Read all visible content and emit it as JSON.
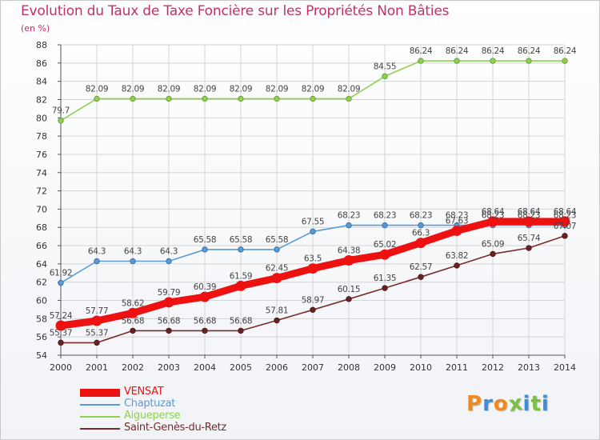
{
  "title": "Evolution du Taux de Taxe Foncière sur les Propriétés Non Bâties",
  "unit_label": "(en %)",
  "logo_text": "Proxiti",
  "colors": {
    "title": "#c0306a",
    "grid": "#d4d4d4",
    "axis": "#555555",
    "logo_letters": [
      "#f08a1c",
      "#3a8fd6",
      "#f08a1c",
      "#7ac043",
      "#3a8fd6",
      "#7ac043",
      "#3a8fd6"
    ]
  },
  "chart_data": {
    "type": "line",
    "title": "Evolution du Taux de Taxe Foncière sur les Propriétés Non Bâties",
    "ylabel": "(en %)",
    "x": [
      "2000",
      "2001",
      "2002",
      "2003",
      "2004",
      "2005",
      "2006",
      "2007",
      "2008",
      "2009",
      "2010",
      "2011",
      "2012",
      "2013",
      "2014"
    ],
    "ylim": [
      54,
      88
    ],
    "yticks": [
      54,
      56,
      58,
      60,
      62,
      64,
      66,
      68,
      70,
      72,
      74,
      76,
      78,
      80,
      82,
      84,
      86,
      88
    ],
    "grid": true,
    "legend_position": "bottom-left",
    "series": [
      {
        "name": "VENSAT",
        "color": "#ee1111",
        "values": [
          57.24,
          57.77,
          58.62,
          59.79,
          60.39,
          61.59,
          62.45,
          63.5,
          64.38,
          65.02,
          66.3,
          67.63,
          68.64,
          68.64,
          68.64
        ],
        "labels": [
          "57.24",
          "57.77",
          "58.62",
          "59.79",
          "60.39",
          "61.59",
          "62.45",
          "63.5",
          "64.38",
          "65.02",
          "66.3",
          "67.63",
          "68.64",
          "68.64",
          "68.64"
        ]
      },
      {
        "name": "Chaptuzat",
        "color": "#5b9bd5",
        "values": [
          61.92,
          64.3,
          64.3,
          64.3,
          65.58,
          65.58,
          65.58,
          67.55,
          68.23,
          68.23,
          68.23,
          68.23,
          68.23,
          68.23,
          68.23
        ],
        "labels": [
          "61.92",
          "64.3",
          "64.3",
          "64.3",
          "65.58",
          "65.58",
          "65.58",
          "67.55",
          "68.23",
          "68.23",
          "68.23",
          "68.23",
          "68.23",
          "68.23",
          "68.23"
        ]
      },
      {
        "name": "Aigueperse",
        "color": "#8fd14f",
        "values": [
          79.7,
          82.09,
          82.09,
          82.09,
          82.09,
          82.09,
          82.09,
          82.09,
          82.09,
          84.55,
          86.24,
          86.24,
          86.24,
          86.24,
          86.24
        ],
        "labels": [
          "79.7",
          "82.09",
          "82.09",
          "82.09",
          "82.09",
          "82.09",
          "82.09",
          "82.09",
          "82.09",
          "84.55",
          "86.24",
          "86.24",
          "86.24",
          "86.24",
          "86.24"
        ]
      },
      {
        "name": "Saint-Genès-du-Retz",
        "color": "#7a2a2a",
        "values": [
          55.37,
          55.37,
          56.68,
          56.68,
          56.68,
          56.68,
          57.81,
          58.97,
          60.15,
          61.35,
          62.57,
          63.82,
          65.09,
          65.74,
          67.07
        ],
        "labels": [
          "55.37",
          "55.37",
          "56.68",
          "56.68",
          "56.68",
          "56.68",
          "57.81",
          "58.97",
          "60.15",
          "61.35",
          "62.57",
          "63.82",
          "65.09",
          "65.74",
          "67.07"
        ]
      }
    ]
  }
}
